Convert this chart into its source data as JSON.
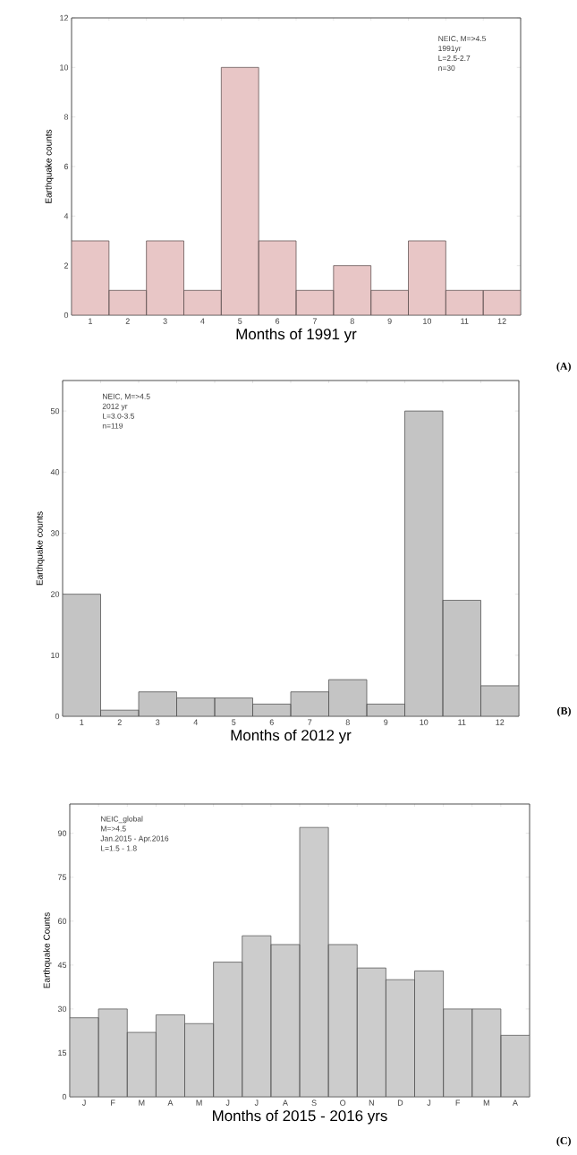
{
  "chart_data": [
    {
      "type": "bar",
      "categories": [
        "1",
        "2",
        "3",
        "4",
        "5",
        "6",
        "7",
        "8",
        "9",
        "10",
        "11",
        "12"
      ],
      "values": [
        3,
        1,
        3,
        1,
        10,
        3,
        1,
        2,
        1,
        3,
        1,
        1
      ],
      "color": "#e8c6c6",
      "xlabel": "Months of 1991 yr",
      "ylabel": "Earthquake counts",
      "ylim": [
        0,
        12
      ],
      "yticks": [
        0,
        2,
        4,
        6,
        8,
        10,
        12
      ],
      "annotations": [
        "NEIC, M=>4.5",
        "1991yr",
        "L=2.5-2.7",
        "n=30",
        "(A)"
      ]
    },
    {
      "type": "bar",
      "categories": [
        "1",
        "2",
        "3",
        "4",
        "5",
        "6",
        "7",
        "8",
        "9",
        "10",
        "11",
        "12"
      ],
      "values": [
        20,
        1,
        4,
        3,
        3,
        2,
        4,
        6,
        2,
        50,
        19,
        5
      ],
      "color": "#c4c4c4",
      "xlabel": "Months of 2012 yr",
      "ylabel": "Earthquake counts",
      "ylim": [
        0,
        55
      ],
      "yticks": [
        0,
        10,
        20,
        30,
        40,
        50
      ],
      "annotations": [
        "NEIC, M=>4.5",
        "2012 yr",
        "L=3.0-3.5",
        "n=119",
        "(B)"
      ]
    },
    {
      "type": "bar",
      "categories": [
        "J",
        "F",
        "M",
        "A",
        "M",
        "J",
        "J",
        "A",
        "S",
        "O",
        "N",
        "D",
        "J",
        "F",
        "M",
        "A"
      ],
      "values": [
        27,
        30,
        22,
        28,
        25,
        46,
        55,
        52,
        92,
        52,
        44,
        40,
        43,
        30,
        30,
        21
      ],
      "color": "#cccccc",
      "xlabel": "Months of 2015 - 2016 yrs",
      "ylabel": "Earthquake Counts",
      "ylim": [
        0,
        100
      ],
      "yticks": [
        0,
        15,
        30,
        45,
        60,
        75,
        90
      ],
      "annotations": [
        "NEIC_global",
        "M=>4.5",
        "Jan.2015 - Apr.2016",
        "L=1.5 - 1.8",
        "(C)"
      ]
    }
  ]
}
